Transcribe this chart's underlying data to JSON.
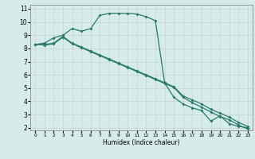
{
  "xlabel": "Humidex (Indice chaleur)",
  "bg_color": "#d5ecea",
  "line_color": "#2a7a6a",
  "grid_color": "#c8d8d0",
  "xlim": [
    -0.5,
    23.5
  ],
  "ylim": [
    1.8,
    11.3
  ],
  "x_ticks": [
    0,
    1,
    2,
    3,
    4,
    5,
    6,
    7,
    8,
    9,
    10,
    11,
    12,
    13,
    14,
    15,
    16,
    17,
    18,
    19,
    20,
    21,
    22,
    23
  ],
  "y_ticks": [
    2,
    3,
    4,
    5,
    6,
    7,
    8,
    9,
    10,
    11
  ],
  "line1_x": [
    0,
    1,
    2,
    3,
    4,
    5,
    6,
    7,
    8,
    9,
    10,
    11,
    12,
    13,
    14,
    15,
    16,
    17,
    18,
    19,
    20,
    21,
    22,
    23
  ],
  "line1_y": [
    8.3,
    8.4,
    8.8,
    9.0,
    9.5,
    9.3,
    9.5,
    10.5,
    10.65,
    10.65,
    10.65,
    10.6,
    10.4,
    10.1,
    5.4,
    4.3,
    3.8,
    3.5,
    3.3,
    2.5,
    2.9,
    2.3,
    2.1,
    2.0
  ],
  "line2_x": [
    0,
    1,
    2,
    3,
    4,
    5,
    6,
    7,
    8,
    9,
    10,
    11,
    12,
    13,
    14,
    15,
    16,
    17,
    18,
    19,
    20,
    21,
    22,
    23
  ],
  "line2_y": [
    8.3,
    8.3,
    8.4,
    8.9,
    8.4,
    8.1,
    7.8,
    7.5,
    7.2,
    6.9,
    6.6,
    6.3,
    6.0,
    5.7,
    5.4,
    5.1,
    4.4,
    4.1,
    3.8,
    3.4,
    3.1,
    2.8,
    2.4,
    2.1
  ],
  "line3_x": [
    0,
    1,
    2,
    3,
    4,
    5,
    6,
    7,
    8,
    9,
    10,
    11,
    12,
    13,
    14,
    15,
    16,
    17,
    18,
    19,
    20,
    21,
    22,
    23
  ],
  "line3_y": [
    8.3,
    8.25,
    8.35,
    8.85,
    8.35,
    8.05,
    7.75,
    7.45,
    7.15,
    6.85,
    6.55,
    6.25,
    5.95,
    5.65,
    5.35,
    5.05,
    4.3,
    3.9,
    3.55,
    3.2,
    2.85,
    2.6,
    2.2,
    1.9
  ]
}
